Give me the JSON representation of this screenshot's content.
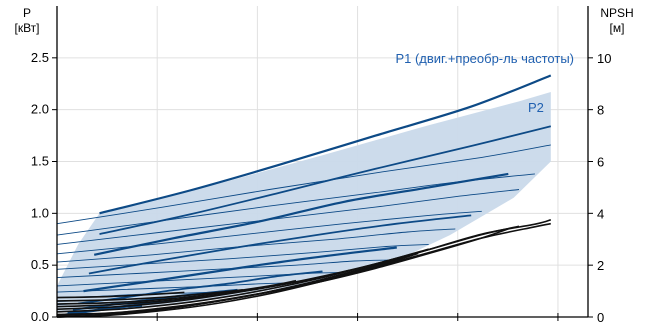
{
  "chart_data": {
    "type": "line",
    "title": "",
    "left_axis": {
      "label": "P",
      "unit": "[кВт]",
      "ylim": [
        0,
        3.0
      ],
      "ticks": [
        "0.0",
        "0.5",
        "1.0",
        "1.5",
        "2.0",
        "2.5"
      ]
    },
    "right_axis": {
      "label": "NPSH",
      "unit": "[м]",
      "ylim": [
        0,
        12
      ],
      "ticks": [
        "0",
        "2",
        "4",
        "6",
        "8",
        "10"
      ]
    },
    "xlim": [
      0,
      1
    ],
    "grid": true,
    "colors": {
      "power": "#0d4a86",
      "envelope": "#c9d9ea",
      "npsh": "#111111",
      "label": "#2060b0"
    },
    "annotations": {
      "p1": "P1 (двиг.+преобр-ль частоты)",
      "p2": "P2"
    },
    "envelope": {
      "upper": [
        [
          0.08,
          1.0
        ],
        [
          0.3,
          1.28
        ],
        [
          0.5,
          1.56
        ],
        [
          0.7,
          1.85
        ],
        [
          0.87,
          2.08
        ],
        [
          0.93,
          2.17
        ]
      ],
      "lower": [
        [
          0.93,
          1.5
        ],
        [
          0.86,
          1.15
        ],
        [
          0.74,
          0.79
        ],
        [
          0.62,
          0.5
        ],
        [
          0.5,
          0.35
        ],
        [
          0.35,
          0.21
        ],
        [
          0.2,
          0.11
        ],
        [
          0.06,
          0.05
        ],
        [
          0.0,
          0.04
        ],
        [
          0.0,
          0.3
        ],
        [
          0.04,
          0.7
        ]
      ]
    },
    "power_curves": [
      {
        "kind": "p1",
        "x": [
          0.08,
          0.25,
          0.42,
          0.6,
          0.78,
          0.93
        ],
        "y": [
          1.0,
          1.22,
          1.47,
          1.75,
          2.03,
          2.33
        ]
      },
      {
        "kind": "p2",
        "x": [
          0.08,
          0.25,
          0.42,
          0.6,
          0.78,
          0.93
        ],
        "y": [
          0.8,
          0.99,
          1.2,
          1.43,
          1.65,
          1.84
        ]
      },
      {
        "kind": "p1",
        "x": [
          0.07,
          0.22,
          0.38,
          0.54,
          0.7,
          0.85
        ],
        "y": [
          0.6,
          0.76,
          0.92,
          1.11,
          1.25,
          1.38
        ]
      },
      {
        "kind": "p2",
        "x": [
          0.06,
          0.2,
          0.35,
          0.5,
          0.64,
          0.78
        ],
        "y": [
          0.42,
          0.55,
          0.68,
          0.8,
          0.9,
          0.98
        ]
      },
      {
        "kind": "p1",
        "x": [
          0.05,
          0.17,
          0.3,
          0.42,
          0.54,
          0.64
        ],
        "y": [
          0.25,
          0.34,
          0.44,
          0.53,
          0.61,
          0.67
        ]
      },
      {
        "kind": "p2",
        "x": [
          0.04,
          0.13,
          0.22,
          0.32,
          0.41,
          0.5
        ],
        "y": [
          0.13,
          0.19,
          0.26,
          0.32,
          0.39,
          0.44
        ]
      },
      {
        "kind": "p1",
        "x": [
          0.03,
          0.09,
          0.15,
          0.21,
          0.28,
          0.34
        ],
        "y": [
          0.07,
          0.11,
          0.15,
          0.19,
          0.23,
          0.26
        ]
      },
      {
        "kind": "p2",
        "x": [
          0.02,
          0.06,
          0.1,
          0.15,
          0.2,
          0.24
        ],
        "y": [
          0.04,
          0.06,
          0.09,
          0.12,
          0.15,
          0.17
        ]
      },
      {
        "kind": "p1",
        "x": [
          0.01,
          0.04,
          0.07,
          0.1,
          0.13,
          0.16
        ],
        "y": [
          0.02,
          0.04,
          0.06,
          0.08,
          0.1,
          0.11
        ]
      }
    ],
    "thin_curves": [
      {
        "x": [
          0.0,
          0.2,
          0.4,
          0.6,
          0.8,
          0.93
        ],
        "y": [
          0.9,
          1.06,
          1.23,
          1.39,
          1.54,
          1.66
        ]
      },
      {
        "x": [
          0.0,
          0.2,
          0.4,
          0.6,
          0.75,
          0.9
        ],
        "y": [
          0.79,
          0.93,
          1.07,
          1.2,
          1.3,
          1.38
        ]
      },
      {
        "x": [
          0.0,
          0.2,
          0.4,
          0.6,
          0.75,
          0.87
        ],
        "y": [
          0.7,
          0.82,
          0.94,
          1.06,
          1.16,
          1.23
        ]
      },
      {
        "x": [
          0.0,
          0.18,
          0.36,
          0.54,
          0.7,
          0.8
        ],
        "y": [
          0.61,
          0.7,
          0.8,
          0.9,
          0.98,
          1.02
        ]
      },
      {
        "x": [
          0.0,
          0.18,
          0.35,
          0.52,
          0.66,
          0.75
        ],
        "y": [
          0.53,
          0.6,
          0.68,
          0.75,
          0.82,
          0.85
        ]
      },
      {
        "x": [
          0.0,
          0.16,
          0.32,
          0.48,
          0.62,
          0.7
        ],
        "y": [
          0.46,
          0.51,
          0.56,
          0.62,
          0.68,
          0.7
        ]
      },
      {
        "x": [
          0.0,
          0.15,
          0.3,
          0.45,
          0.56,
          0.63
        ],
        "y": [
          0.38,
          0.42,
          0.46,
          0.5,
          0.54,
          0.55
        ]
      },
      {
        "x": [
          0.0,
          0.12,
          0.24,
          0.36,
          0.47,
          0.54
        ],
        "y": [
          0.3,
          0.33,
          0.36,
          0.39,
          0.42,
          0.43
        ]
      },
      {
        "x": [
          0.0,
          0.1,
          0.2,
          0.3,
          0.38,
          0.44
        ],
        "y": [
          0.24,
          0.26,
          0.28,
          0.3,
          0.32,
          0.33
        ]
      },
      {
        "x": [
          0.0,
          0.08,
          0.16,
          0.24,
          0.3,
          0.35
        ],
        "y": [
          0.19,
          0.2,
          0.22,
          0.23,
          0.24,
          0.25
        ]
      },
      {
        "x": [
          0.0,
          0.06,
          0.12,
          0.18,
          0.22,
          0.26
        ],
        "y": [
          0.15,
          0.16,
          0.17,
          0.18,
          0.18,
          0.19
        ]
      },
      {
        "x": [
          0.0,
          0.04,
          0.08,
          0.12,
          0.15,
          0.18
        ],
        "y": [
          0.12,
          0.13,
          0.13,
          0.14,
          0.14,
          0.15
        ]
      }
    ],
    "npsh_curves": [
      {
        "x": [
          0.0,
          0.1,
          0.2,
          0.3,
          0.4,
          0.5,
          0.6,
          0.7,
          0.8,
          0.9,
          0.93
        ],
        "y": [
          0.1,
          0.15,
          0.32,
          0.6,
          0.98,
          1.45,
          2.0,
          2.6,
          3.2,
          3.58,
          3.75
        ]
      },
      {
        "x": [
          0.0,
          0.1,
          0.2,
          0.3,
          0.4,
          0.5,
          0.6,
          0.7,
          0.8,
          0.9,
          0.93
        ],
        "y": [
          0.0,
          0.07,
          0.25,
          0.52,
          0.9,
          1.38,
          1.92,
          2.48,
          3.05,
          3.48,
          3.6
        ]
      },
      {
        "x": [
          0.0,
          0.1,
          0.2,
          0.3,
          0.4,
          0.5,
          0.6,
          0.7,
          0.8,
          0.87
        ],
        "y": [
          0.2,
          0.28,
          0.45,
          0.72,
          1.08,
          1.52,
          2.05,
          2.6,
          3.18,
          3.5
        ]
      },
      {
        "x": [
          0.0,
          0.1,
          0.2,
          0.3,
          0.4,
          0.5,
          0.6,
          0.7,
          0.8,
          0.85
        ],
        "y": [
          0.0,
          0.1,
          0.3,
          0.6,
          0.96,
          1.38,
          1.88,
          2.45,
          3.05,
          3.4
        ]
      },
      {
        "x": [
          0.0,
          0.1,
          0.2,
          0.3,
          0.4,
          0.5,
          0.6,
          0.7
        ],
        "y": [
          0.3,
          0.38,
          0.55,
          0.82,
          1.16,
          1.57,
          2.05,
          2.62
        ]
      },
      {
        "x": [
          0.0,
          0.1,
          0.2,
          0.3,
          0.4,
          0.5,
          0.6,
          0.68
        ],
        "y": [
          0.05,
          0.15,
          0.35,
          0.62,
          0.98,
          1.42,
          1.95,
          2.45
        ]
      },
      {
        "x": [
          0.0,
          0.1,
          0.2,
          0.3,
          0.4,
          0.5,
          0.55
        ],
        "y": [
          0.4,
          0.47,
          0.62,
          0.85,
          1.16,
          1.55,
          1.8
        ]
      },
      {
        "x": [
          0.0,
          0.1,
          0.2,
          0.3,
          0.4,
          0.45
        ],
        "y": [
          0.5,
          0.55,
          0.68,
          0.9,
          1.2,
          1.4
        ]
      },
      {
        "x": [
          0.0,
          0.1,
          0.2,
          0.3,
          0.35
        ],
        "y": [
          0.62,
          0.66,
          0.76,
          0.94,
          1.05
        ]
      },
      {
        "x": [
          0.0,
          0.08,
          0.16,
          0.24
        ],
        "y": [
          0.75,
          0.78,
          0.85,
          0.95
        ]
      }
    ]
  }
}
